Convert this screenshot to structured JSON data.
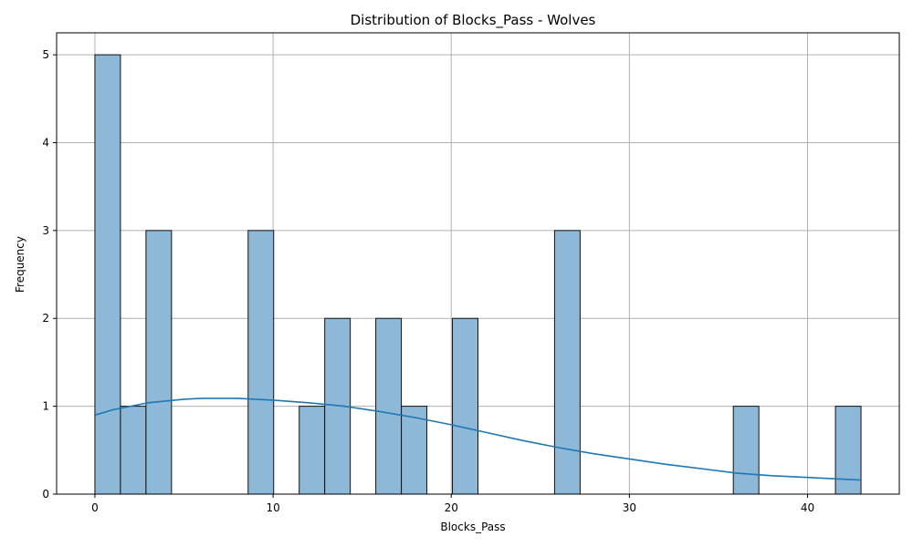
{
  "chart_data": {
    "type": "bar",
    "title": "Distribution of Blocks_Pass - Wolves",
    "xlabel": "Blocks_Pass",
    "ylabel": "Frequency",
    "xlim": [
      -2.15,
      45.15
    ],
    "ylim": [
      0,
      5.25
    ],
    "xticks": [
      0,
      10,
      20,
      30,
      40
    ],
    "yticks": [
      0,
      1,
      2,
      3,
      4,
      5
    ],
    "grid": true,
    "bin_width": 1.4333,
    "histogram": [
      {
        "x0": 0.0,
        "x1": 1.4333,
        "count": 5
      },
      {
        "x0": 1.4333,
        "x1": 2.8667,
        "count": 1
      },
      {
        "x0": 2.8667,
        "x1": 4.3,
        "count": 3
      },
      {
        "x0": 8.6,
        "x1": 10.0333,
        "count": 3
      },
      {
        "x0": 11.4667,
        "x1": 12.9,
        "count": 1
      },
      {
        "x0": 12.9,
        "x1": 14.3333,
        "count": 2
      },
      {
        "x0": 15.7667,
        "x1": 17.2,
        "count": 2
      },
      {
        "x0": 17.2,
        "x1": 18.6333,
        "count": 1
      },
      {
        "x0": 20.0667,
        "x1": 21.5,
        "count": 2
      },
      {
        "x0": 25.8,
        "x1": 27.2333,
        "count": 3
      },
      {
        "x0": 35.8333,
        "x1": 37.2667,
        "count": 1
      },
      {
        "x0": 41.5667,
        "x1": 43.0,
        "count": 1
      }
    ],
    "kde": {
      "x": [
        0,
        1,
        2,
        3,
        4,
        5,
        6,
        8,
        10,
        12,
        14,
        16,
        18,
        20,
        22,
        24,
        26,
        28,
        30,
        32,
        34,
        36,
        38,
        40,
        43
      ],
      "y": [
        0.9,
        0.96,
        1.0,
        1.04,
        1.06,
        1.08,
        1.09,
        1.09,
        1.07,
        1.04,
        1.0,
        0.94,
        0.87,
        0.79,
        0.7,
        0.61,
        0.53,
        0.46,
        0.4,
        0.34,
        0.29,
        0.24,
        0.21,
        0.19,
        0.16
      ]
    },
    "colors": {
      "bar_fill": "#8db8d8",
      "bar_edge": "#111111",
      "kde_line": "#1f77b4",
      "grid": "#b0b0b0"
    }
  }
}
